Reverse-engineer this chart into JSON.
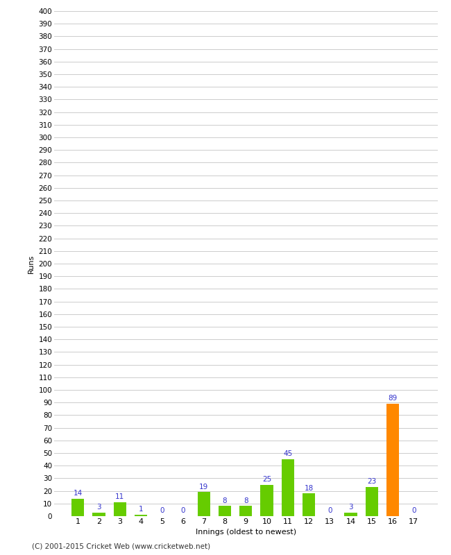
{
  "xlabel": "Innings (oldest to newest)",
  "ylabel": "Runs",
  "categories": [
    "1",
    "2",
    "3",
    "4",
    "5",
    "6",
    "7",
    "8",
    "9",
    "10",
    "11",
    "12",
    "13",
    "14",
    "15",
    "16",
    "17"
  ],
  "values": [
    14,
    3,
    11,
    1,
    0,
    0,
    19,
    8,
    8,
    25,
    45,
    18,
    0,
    3,
    23,
    89,
    0
  ],
  "bar_colors": [
    "#66cc00",
    "#66cc00",
    "#66cc00",
    "#66cc00",
    "#66cc00",
    "#66cc00",
    "#66cc00",
    "#66cc00",
    "#66cc00",
    "#66cc00",
    "#66cc00",
    "#66cc00",
    "#66cc00",
    "#66cc00",
    "#66cc00",
    "#ff8800",
    "#66cc00"
  ],
  "ylim": [
    0,
    400
  ],
  "ytick_step": 10,
  "background_color": "#ffffff",
  "grid_color": "#cccccc",
  "label_color": "#3333cc",
  "footer": "(C) 2001-2015 Cricket Web (www.cricketweb.net)"
}
